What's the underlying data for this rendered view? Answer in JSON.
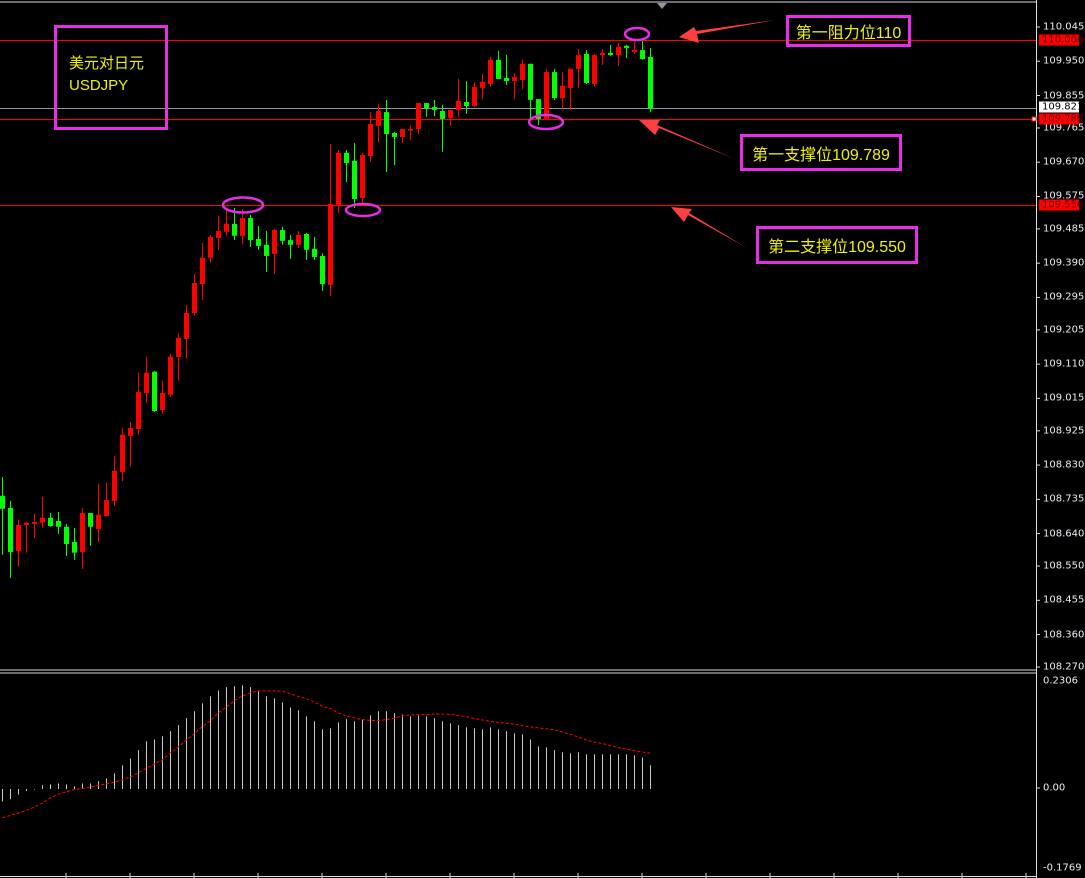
{
  "title_box": {
    "name_cn": "美元对日元",
    "symbol": "USDJPY"
  },
  "annotations": {
    "resistance1": "第一阻力位110",
    "support1": "第一支撑位109.789",
    "support2": "第二支撑位109.550"
  },
  "price_axis": {
    "ticks": [
      "110.045",
      "109.950",
      "109.855",
      "109.765",
      "109.670",
      "109.575",
      "109.485",
      "109.390",
      "109.295",
      "109.205",
      "109.110",
      "109.015",
      "108.925",
      "108.830",
      "108.735",
      "108.640",
      "108.550",
      "108.455",
      "108.360",
      "108.270"
    ]
  },
  "level_tags": {
    "resistance1": "110.008",
    "bid": "109.821",
    "support1": "109.789",
    "support2": "109.550"
  },
  "macd_axis": {
    "top": "0.2306",
    "zero": "0.00",
    "bottom": "-0.1769"
  },
  "colors": {
    "up": "#ff0000",
    "down": "#00ff00",
    "annotation": "#e62ee6",
    "label_text": "#f2f200",
    "level_line": "#ff0000",
    "bid_line": "#8c96a5",
    "histogram": "#c8c8c8",
    "signal": "#ff0000"
  },
  "chart_data": [
    {
      "type": "candlestick",
      "title": "",
      "ohlc_order": [
        "open",
        "high",
        "low",
        "close"
      ],
      "ylim": [
        108.27,
        110.045
      ],
      "up_color": "red",
      "down_color": "green",
      "levels": [
        110.008,
        109.821,
        109.789,
        109.55
      ],
      "candles": [
        [
          108.745,
          108.797,
          108.581,
          108.709
        ],
        [
          108.711,
          108.731,
          108.517,
          108.589
        ],
        [
          108.592,
          108.678,
          108.548,
          108.664
        ],
        [
          108.664,
          108.672,
          108.587,
          108.67
        ],
        [
          108.667,
          108.695,
          108.628,
          108.672
        ],
        [
          108.67,
          108.742,
          108.656,
          108.684
        ],
        [
          108.684,
          108.697,
          108.659,
          108.661
        ],
        [
          108.675,
          108.7,
          108.639,
          108.659
        ],
        [
          108.659,
          108.667,
          108.578,
          108.611
        ],
        [
          108.617,
          108.656,
          108.567,
          108.587
        ],
        [
          108.589,
          108.711,
          108.542,
          108.697
        ],
        [
          108.697,
          108.697,
          108.606,
          108.659
        ],
        [
          108.653,
          108.778,
          108.617,
          108.692
        ],
        [
          108.689,
          108.781,
          108.689,
          108.733
        ],
        [
          108.731,
          108.855,
          108.717,
          108.814
        ],
        [
          108.811,
          108.933,
          108.786,
          108.914
        ],
        [
          108.911,
          108.95,
          108.825,
          108.933
        ],
        [
          108.93,
          109.086,
          108.914,
          109.033
        ],
        [
          109.03,
          109.13,
          109.003,
          109.086
        ],
        [
          109.089,
          109.091,
          108.978,
          108.98
        ],
        [
          108.983,
          109.064,
          108.972,
          109.03
        ],
        [
          109.025,
          109.138,
          109.019,
          109.13
        ],
        [
          109.13,
          109.196,
          109.064,
          109.183
        ],
        [
          109.18,
          109.274,
          109.125,
          109.252
        ],
        [
          109.252,
          109.36,
          109.244,
          109.335
        ],
        [
          109.332,
          109.446,
          109.288,
          109.405
        ],
        [
          109.405,
          109.468,
          109.391,
          109.463
        ],
        [
          109.46,
          109.521,
          109.427,
          109.479
        ],
        [
          109.477,
          109.538,
          109.466,
          109.499
        ],
        [
          109.499,
          109.543,
          109.454,
          109.466
        ],
        [
          109.466,
          109.54,
          109.443,
          109.515
        ],
        [
          109.515,
          109.524,
          109.435,
          109.454
        ],
        [
          109.457,
          109.493,
          109.427,
          109.438
        ],
        [
          109.441,
          109.479,
          109.366,
          109.41
        ],
        [
          109.416,
          109.485,
          109.36,
          109.482
        ],
        [
          109.482,
          109.491,
          109.441,
          109.452
        ],
        [
          109.454,
          109.468,
          109.402,
          109.441
        ],
        [
          109.441,
          109.479,
          109.432,
          109.468
        ],
        [
          109.471,
          109.474,
          109.399,
          109.427
        ],
        [
          109.43,
          109.463,
          109.399,
          109.407
        ],
        [
          109.41,
          109.418,
          109.313,
          109.332
        ],
        [
          109.33,
          109.721,
          109.299,
          109.554
        ],
        [
          109.552,
          109.704,
          109.529,
          109.696
        ],
        [
          109.696,
          109.704,
          109.615,
          109.668
        ],
        [
          109.674,
          109.723,
          109.543,
          109.568
        ],
        [
          109.571,
          109.696,
          109.552,
          109.69
        ],
        [
          109.687,
          109.809,
          109.671,
          109.776
        ],
        [
          109.771,
          109.832,
          109.726,
          109.812
        ],
        [
          109.809,
          109.843,
          109.643,
          109.748
        ],
        [
          109.751,
          109.754,
          109.662,
          109.74
        ],
        [
          109.74,
          109.762,
          109.723,
          109.762
        ],
        [
          109.76,
          109.773,
          109.732,
          109.762
        ],
        [
          109.762,
          109.834,
          109.748,
          109.834
        ],
        [
          109.834,
          109.834,
          109.796,
          109.82
        ],
        [
          109.823,
          109.843,
          109.798,
          109.815
        ],
        [
          109.812,
          109.829,
          109.699,
          109.79
        ],
        [
          109.793,
          109.815,
          109.771,
          109.815
        ],
        [
          109.815,
          109.901,
          109.796,
          109.84
        ],
        [
          109.837,
          109.895,
          109.804,
          109.826
        ],
        [
          109.826,
          109.892,
          109.823,
          109.879
        ],
        [
          109.876,
          109.915,
          109.845,
          109.893
        ],
        [
          109.887,
          109.962,
          109.879,
          109.954
        ],
        [
          109.954,
          109.979,
          109.901,
          109.901
        ],
        [
          109.904,
          109.968,
          109.884,
          109.895
        ],
        [
          109.895,
          109.918,
          109.845,
          109.906
        ],
        [
          109.898,
          109.954,
          109.873,
          109.943
        ],
        [
          109.943,
          109.943,
          109.79,
          109.843
        ],
        [
          109.845,
          109.845,
          109.773,
          109.79
        ],
        [
          109.79,
          109.929,
          109.79,
          109.92
        ],
        [
          109.92,
          109.929,
          109.843,
          109.848
        ],
        [
          109.848,
          109.92,
          109.818,
          109.882
        ],
        [
          109.876,
          109.929,
          109.815,
          109.929
        ],
        [
          109.929,
          109.984,
          109.876,
          109.967
        ],
        [
          109.97,
          109.981,
          109.887,
          109.89
        ],
        [
          109.887,
          109.97,
          109.879,
          109.967
        ],
        [
          109.967,
          109.984,
          109.94,
          109.973
        ],
        [
          109.973,
          109.995,
          109.965,
          109.967
        ],
        [
          109.967,
          110.001,
          109.937,
          109.99
        ],
        [
          109.993,
          109.995,
          109.959,
          109.987
        ],
        [
          109.976,
          110.009,
          109.97,
          109.981
        ],
        [
          109.981,
          110.006,
          109.954,
          109.956
        ],
        [
          109.962,
          109.987,
          109.809,
          109.818
        ]
      ]
    },
    {
      "type": "bar",
      "title": "",
      "ylim": [
        -0.1769,
        0.2306
      ],
      "histogram": [
        -0.027,
        -0.022,
        -0.012,
        -0.004,
        -0.001,
        0.008,
        0.01,
        0.012,
        0.01,
        0.006,
        0.012,
        0.012,
        0.017,
        0.023,
        0.034,
        0.051,
        0.066,
        0.084,
        0.103,
        0.107,
        0.114,
        0.125,
        0.138,
        0.153,
        0.168,
        0.185,
        0.2,
        0.213,
        0.22,
        0.222,
        0.224,
        0.22,
        0.211,
        0.2,
        0.196,
        0.187,
        0.176,
        0.17,
        0.157,
        0.146,
        0.129,
        0.131,
        0.144,
        0.151,
        0.146,
        0.151,
        0.159,
        0.168,
        0.168,
        0.164,
        0.161,
        0.157,
        0.159,
        0.157,
        0.153,
        0.146,
        0.142,
        0.138,
        0.133,
        0.131,
        0.129,
        0.133,
        0.129,
        0.125,
        0.12,
        0.118,
        0.107,
        0.092,
        0.09,
        0.084,
        0.079,
        0.077,
        0.079,
        0.075,
        0.075,
        0.075,
        0.075,
        0.075,
        0.075,
        0.073,
        0.068,
        0.051
      ],
      "signal": [
        -0.062,
        -0.057,
        -0.052,
        -0.046,
        -0.039,
        -0.03,
        -0.019,
        -0.011,
        -0.006,
        -0.001,
        0.001,
        0.004,
        0.008,
        0.011,
        0.015,
        0.02,
        0.026,
        0.035,
        0.045,
        0.054,
        0.063,
        0.078,
        0.091,
        0.106,
        0.12,
        0.135,
        0.148,
        0.165,
        0.177,
        0.191,
        0.201,
        0.208,
        0.212,
        0.212,
        0.212,
        0.211,
        0.206,
        0.2,
        0.195,
        0.188,
        0.178,
        0.174,
        0.164,
        0.158,
        0.153,
        0.15,
        0.148,
        0.148,
        0.15,
        0.153,
        0.158,
        0.16,
        0.161,
        0.161,
        0.162,
        0.162,
        0.161,
        0.159,
        0.156,
        0.152,
        0.149,
        0.146,
        0.144,
        0.142,
        0.14,
        0.137,
        0.134,
        0.132,
        0.13,
        0.128,
        0.123,
        0.118,
        0.112,
        0.106,
        0.101,
        0.098,
        0.094,
        0.089,
        0.086,
        0.083,
        0.08,
        0.077
      ]
    }
  ]
}
